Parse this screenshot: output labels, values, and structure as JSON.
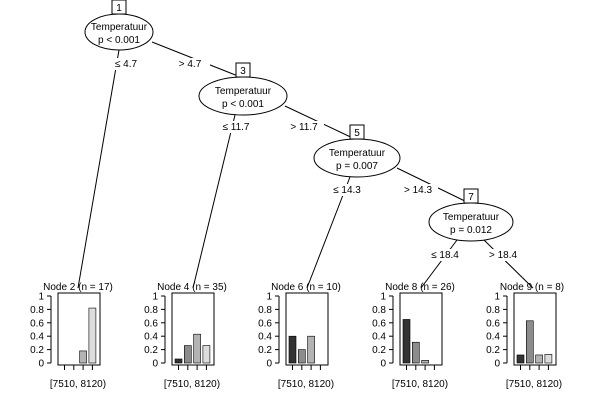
{
  "inner_nodes": [
    {
      "id": "1",
      "variable": "Temperatuur",
      "p_value": "p < 0.001"
    },
    {
      "id": "3",
      "variable": "Temperatuur",
      "p_value": "p < 0.001"
    },
    {
      "id": "5",
      "variable": "Temperatuur",
      "p_value": "p = 0.007"
    },
    {
      "id": "7",
      "variable": "Temperatuur",
      "p_value": "p = 0.012"
    }
  ],
  "edge_labels": [
    {
      "from": "1",
      "to": "2",
      "label": "≤ 4.7"
    },
    {
      "from": "1",
      "to": "3",
      "label": "> 4.7"
    },
    {
      "from": "3",
      "to": "4",
      "label": "≤ 11.7"
    },
    {
      "from": "3",
      "to": "5",
      "label": "> 11.7"
    },
    {
      "from": "5",
      "to": "6",
      "label": "≤ 14.3"
    },
    {
      "from": "5",
      "to": "7",
      "label": "> 14.3"
    },
    {
      "from": "7",
      "to": "8",
      "label": "≤ 18.4"
    },
    {
      "from": "7",
      "to": "9",
      "label": "> 18.4"
    }
  ],
  "chart_data": {
    "type": "bar",
    "y_ticks": [
      "0",
      "0.2",
      "0.4",
      "0.6",
      "0.8",
      "1"
    ],
    "ylim": [
      0,
      1
    ],
    "xlabel": "[7510, 8120)",
    "bar_colors": [
      "#333333",
      "#8c8c8c",
      "#b3b3b3",
      "#dcdcdc"
    ],
    "terminal_nodes": [
      {
        "id": "2",
        "title": "Node 2 (n = 17)",
        "values": [
          0.0,
          0.0,
          0.18,
          0.82
        ]
      },
      {
        "id": "4",
        "title": "Node 4 (n = 35)",
        "values": [
          0.06,
          0.26,
          0.43,
          0.26
        ]
      },
      {
        "id": "6",
        "title": "Node 6 (n = 10)",
        "values": [
          0.4,
          0.2,
          0.4,
          0.0
        ]
      },
      {
        "id": "8",
        "title": "Node 8 (n = 26)",
        "values": [
          0.65,
          0.31,
          0.04,
          0.0
        ]
      },
      {
        "id": "9",
        "title": "Node 9 (n = 8)",
        "values": [
          0.12,
          0.63,
          0.12,
          0.13
        ]
      }
    ]
  }
}
